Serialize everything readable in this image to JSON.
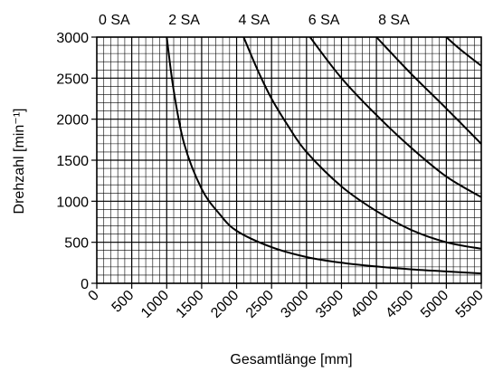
{
  "chart_data": {
    "type": "line",
    "title": "",
    "xlabel": "Gesamtlänge [mm]",
    "ylabel": "Drehzahl [min⁻¹]",
    "xlim": [
      0,
      5500
    ],
    "ylim": [
      0,
      3000
    ],
    "x_ticks": [
      "0",
      "500",
      "1000",
      "1500",
      "2000",
      "2500",
      "3000",
      "3500",
      "4000",
      "4500",
      "5000",
      "5500"
    ],
    "y_ticks": [
      "0",
      "500",
      "1000",
      "1500",
      "2000",
      "2500",
      "3000"
    ],
    "grid": true,
    "minor_grid_x_step": 100,
    "minor_grid_y_step": 100,
    "top_labels": [
      {
        "label": "0 SA",
        "x": 250
      },
      {
        "label": "2 SA",
        "x": 1250
      },
      {
        "label": "4 SA",
        "x": 2250
      },
      {
        "label": "6 SA",
        "x": 3250
      },
      {
        "label": "8 SA",
        "x": 4250
      }
    ],
    "series": [
      {
        "points": [
          [
            1000,
            3000
          ],
          [
            1100,
            2350
          ],
          [
            1250,
            1700
          ],
          [
            1500,
            1150
          ],
          [
            1750,
            850
          ],
          [
            2000,
            640
          ],
          [
            2500,
            440
          ],
          [
            3000,
            320
          ],
          [
            3500,
            250
          ],
          [
            4000,
            205
          ],
          [
            4500,
            170
          ],
          [
            5000,
            145
          ],
          [
            5500,
            120
          ]
        ]
      },
      {
        "points": [
          [
            2100,
            3000
          ],
          [
            2300,
            2600
          ],
          [
            2500,
            2250
          ],
          [
            2750,
            1900
          ],
          [
            3000,
            1600
          ],
          [
            3500,
            1180
          ],
          [
            4000,
            880
          ],
          [
            4500,
            650
          ],
          [
            5000,
            500
          ],
          [
            5500,
            420
          ]
        ]
      },
      {
        "points": [
          [
            3050,
            3000
          ],
          [
            3500,
            2500
          ],
          [
            4000,
            2050
          ],
          [
            4500,
            1650
          ],
          [
            5000,
            1300
          ],
          [
            5500,
            1050
          ]
        ]
      },
      {
        "points": [
          [
            4000,
            3000
          ],
          [
            4500,
            2550
          ],
          [
            5000,
            2130
          ],
          [
            5500,
            1700
          ]
        ]
      },
      {
        "points": [
          [
            5000,
            3000
          ],
          [
            5200,
            2850
          ],
          [
            5500,
            2650
          ]
        ]
      }
    ],
    "line_color": "#000000",
    "grid_color": "#000000"
  }
}
